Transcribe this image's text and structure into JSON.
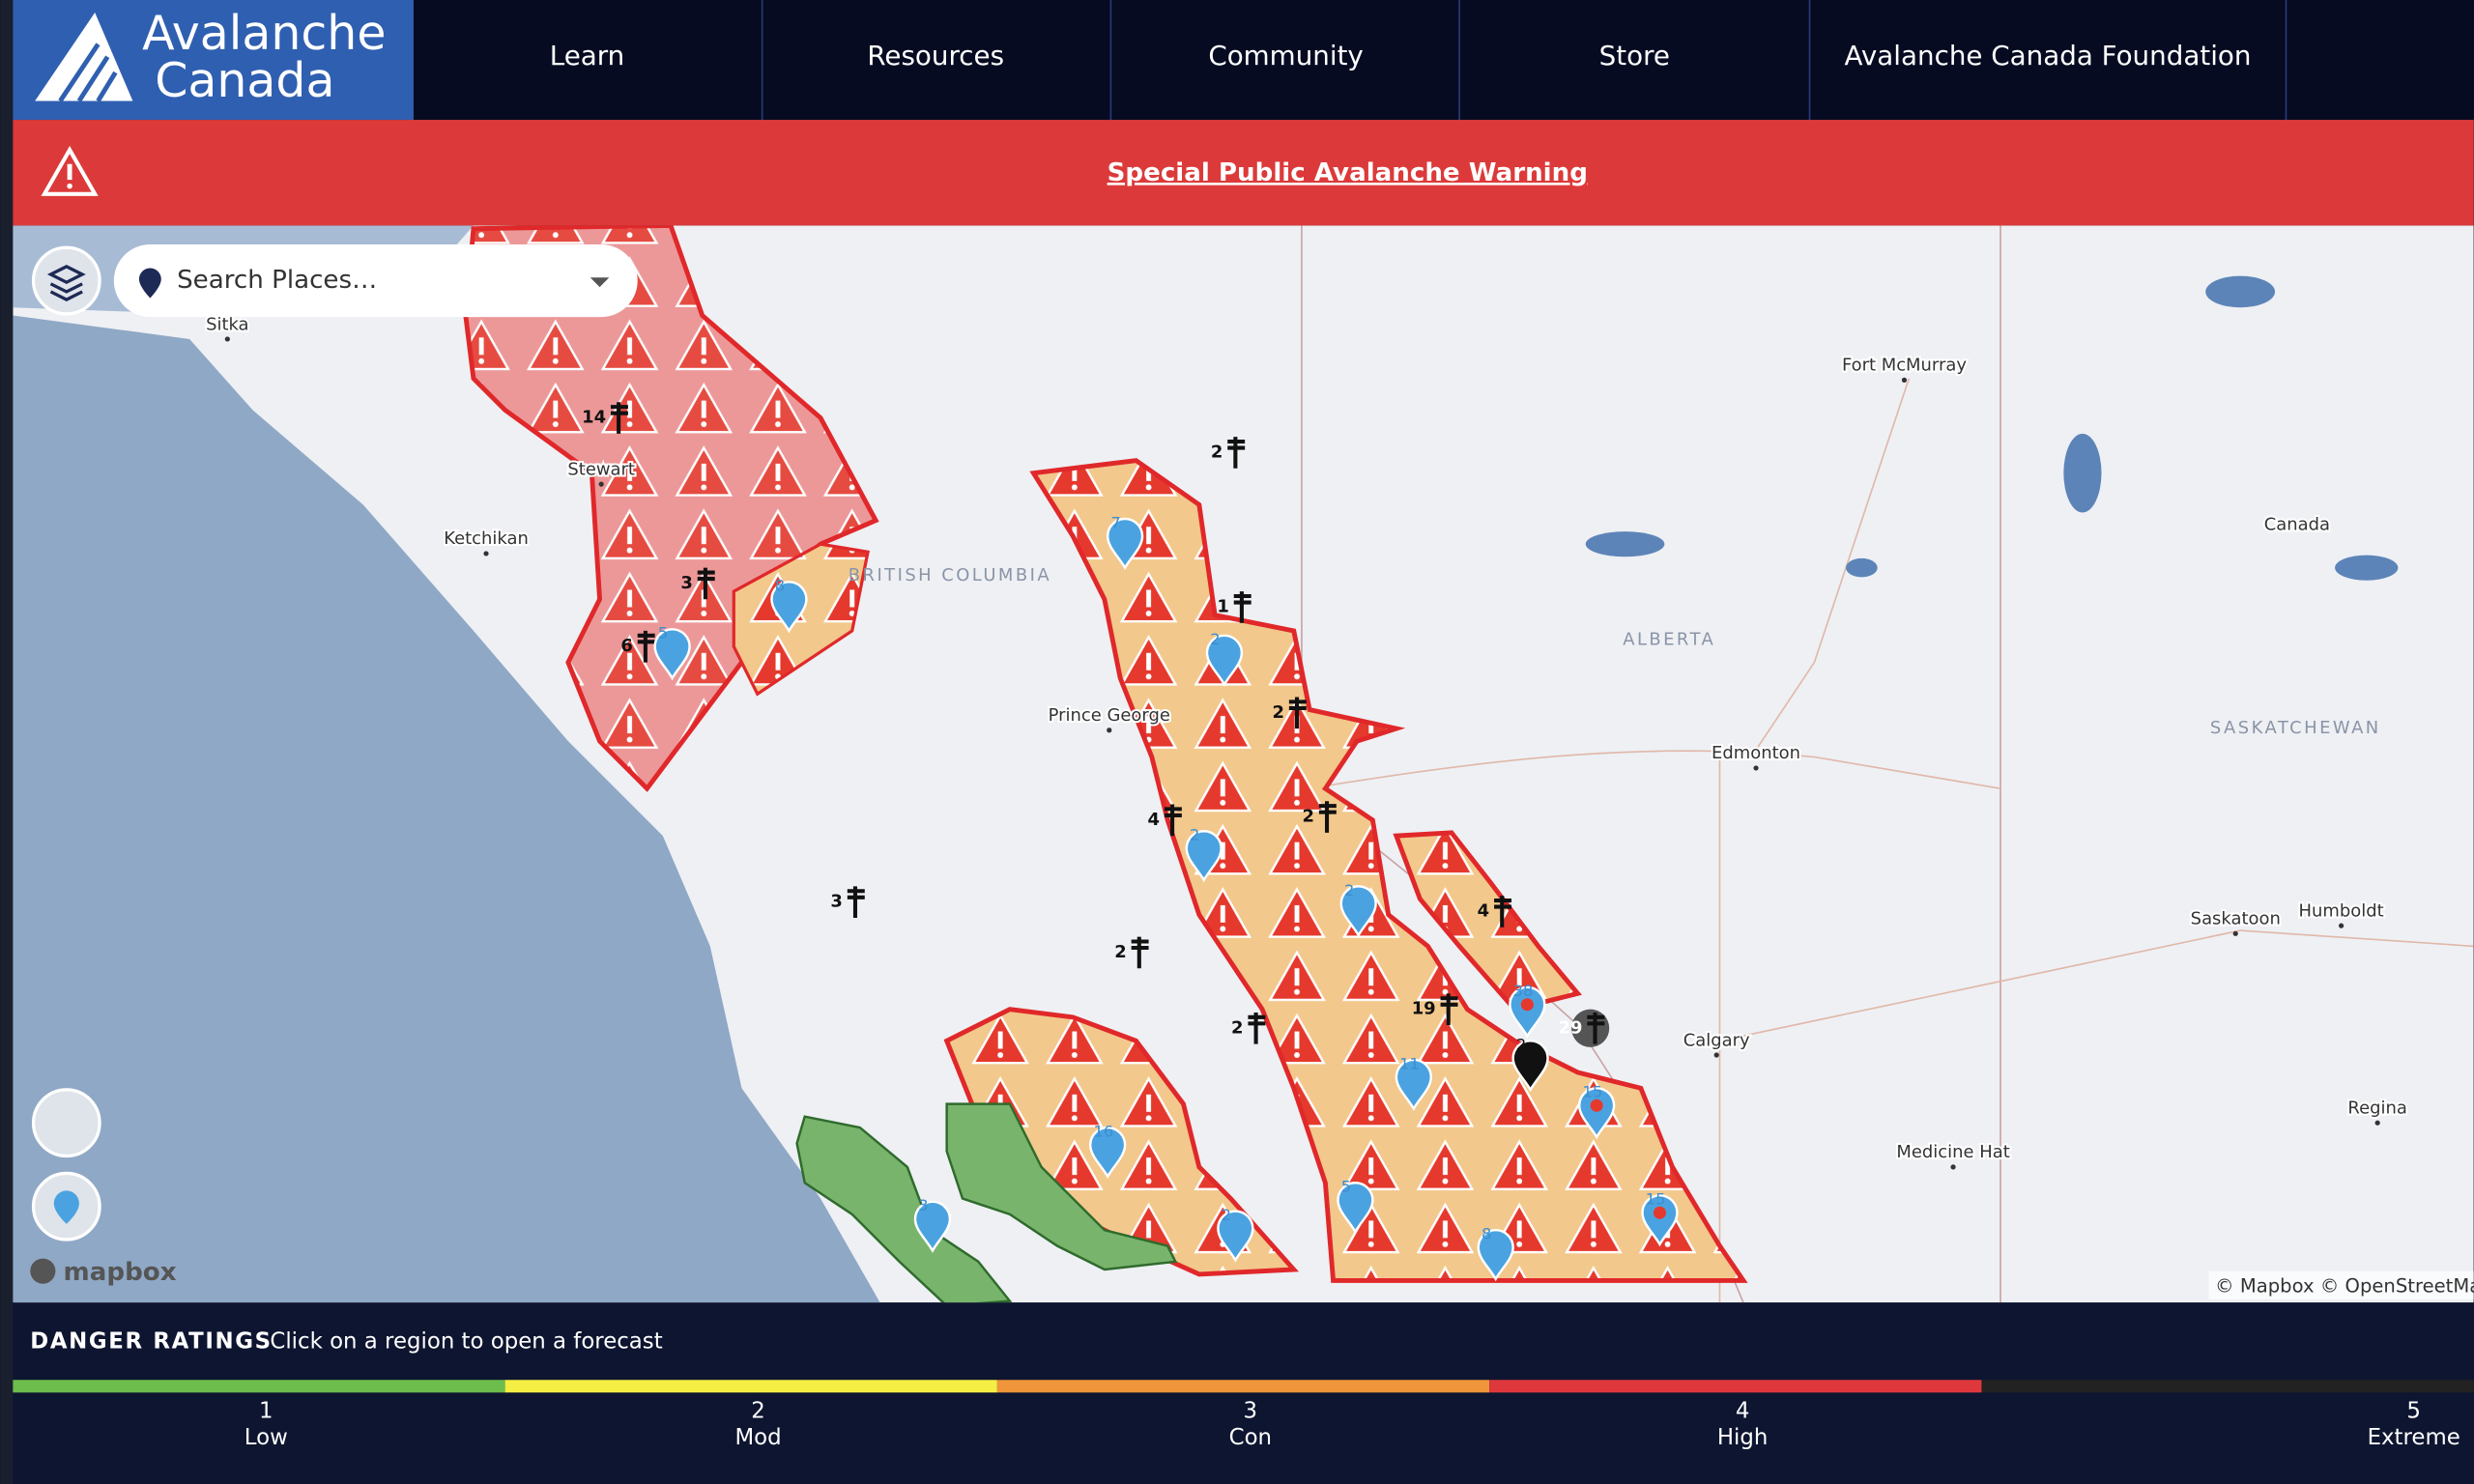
{
  "logo": {
    "line1": "Avalanche",
    "line2": "Canada"
  },
  "nav": [
    "Learn",
    "Resources",
    "Community",
    "Store",
    "Avalanche Canada Foundation"
  ],
  "warning": "Special Public Avalanche Warning",
  "search": {
    "placeholder": "Search Places…"
  },
  "map": {
    "places": [
      "Sitka",
      "Stewart",
      "Ketchikan",
      "Prince George",
      "Fort McMurray",
      "Edmonton",
      "Saskatoon",
      "Humboldt",
      "Calgary",
      "Regina",
      "Medicine Hat",
      "Canada"
    ],
    "regions": [
      "BRITISH COLUMBIA",
      "ALBERTA",
      "SASKATCHEWAN"
    ],
    "stations": [
      14,
      3,
      6,
      2,
      1,
      2,
      4,
      2,
      3,
      2,
      2,
      19,
      4,
      29
    ],
    "pins": [
      8,
      5,
      7,
      2,
      2,
      2,
      11,
      16,
      3,
      2,
      5,
      8,
      15,
      38,
      15,
      2
    ],
    "logo": "mapbox",
    "attribution": "© Mapbox © OpenStreetMap"
  },
  "footer": {
    "title": "DANGER RATINGS",
    "hint": "Click on a region to open a forecast",
    "ratings": [
      {
        "level": 1,
        "label": "Low"
      },
      {
        "level": 2,
        "label": "Mod"
      },
      {
        "level": 3,
        "label": "Con"
      },
      {
        "level": 4,
        "label": "High"
      },
      {
        "level": 5,
        "label": "Extreme"
      }
    ]
  }
}
